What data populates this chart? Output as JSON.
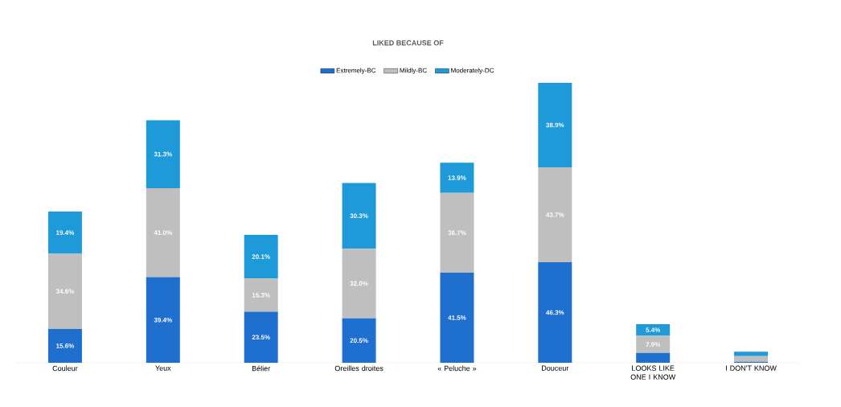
{
  "chart_data": {
    "type": "bar",
    "stacked": true,
    "title": "LIKED BECAUSE OF",
    "legend": "top",
    "tick_labels": "x",
    "categories": [
      "Couleur",
      "Yeux",
      "Bélier",
      "Oreilles droites",
      "« Peluche »",
      "Douceur",
      "LOOKS LIKE ONE I KNOW",
      "I DON'T KNOW"
    ],
    "series": [
      {
        "name": "Extremely-BC",
        "color": "#1f6fcf",
        "values": [
          15.6,
          39.4,
          23.5,
          20.5,
          41.5,
          46.3,
          4.5,
          0.5
        ],
        "value_labels": [
          "15.6%",
          "39.4%",
          "23.5%",
          "20.5%",
          "41.5%",
          "46.3%",
          null,
          null
        ]
      },
      {
        "name": "Mildly-BC",
        "color": "#bfbfbf",
        "values": [
          34.6,
          41.0,
          15.3,
          32.0,
          36.7,
          43.7,
          7.9,
          2.6
        ],
        "value_labels": [
          "34.6%",
          "41.0%",
          "15.3%",
          "32.0%",
          "36.7%",
          "43.7%",
          "7.9%",
          null
        ]
      },
      {
        "name": "Moderately-DC",
        "color": "#1f9ad8",
        "values": [
          19.4,
          31.3,
          20.1,
          30.3,
          13.9,
          38.9,
          5.4,
          2.0
        ],
        "value_labels": [
          "19.4%",
          "31.3%",
          "20.1%",
          "30.3%",
          "13.9%",
          "38.9%",
          "5.4%",
          null
        ]
      }
    ]
  }
}
